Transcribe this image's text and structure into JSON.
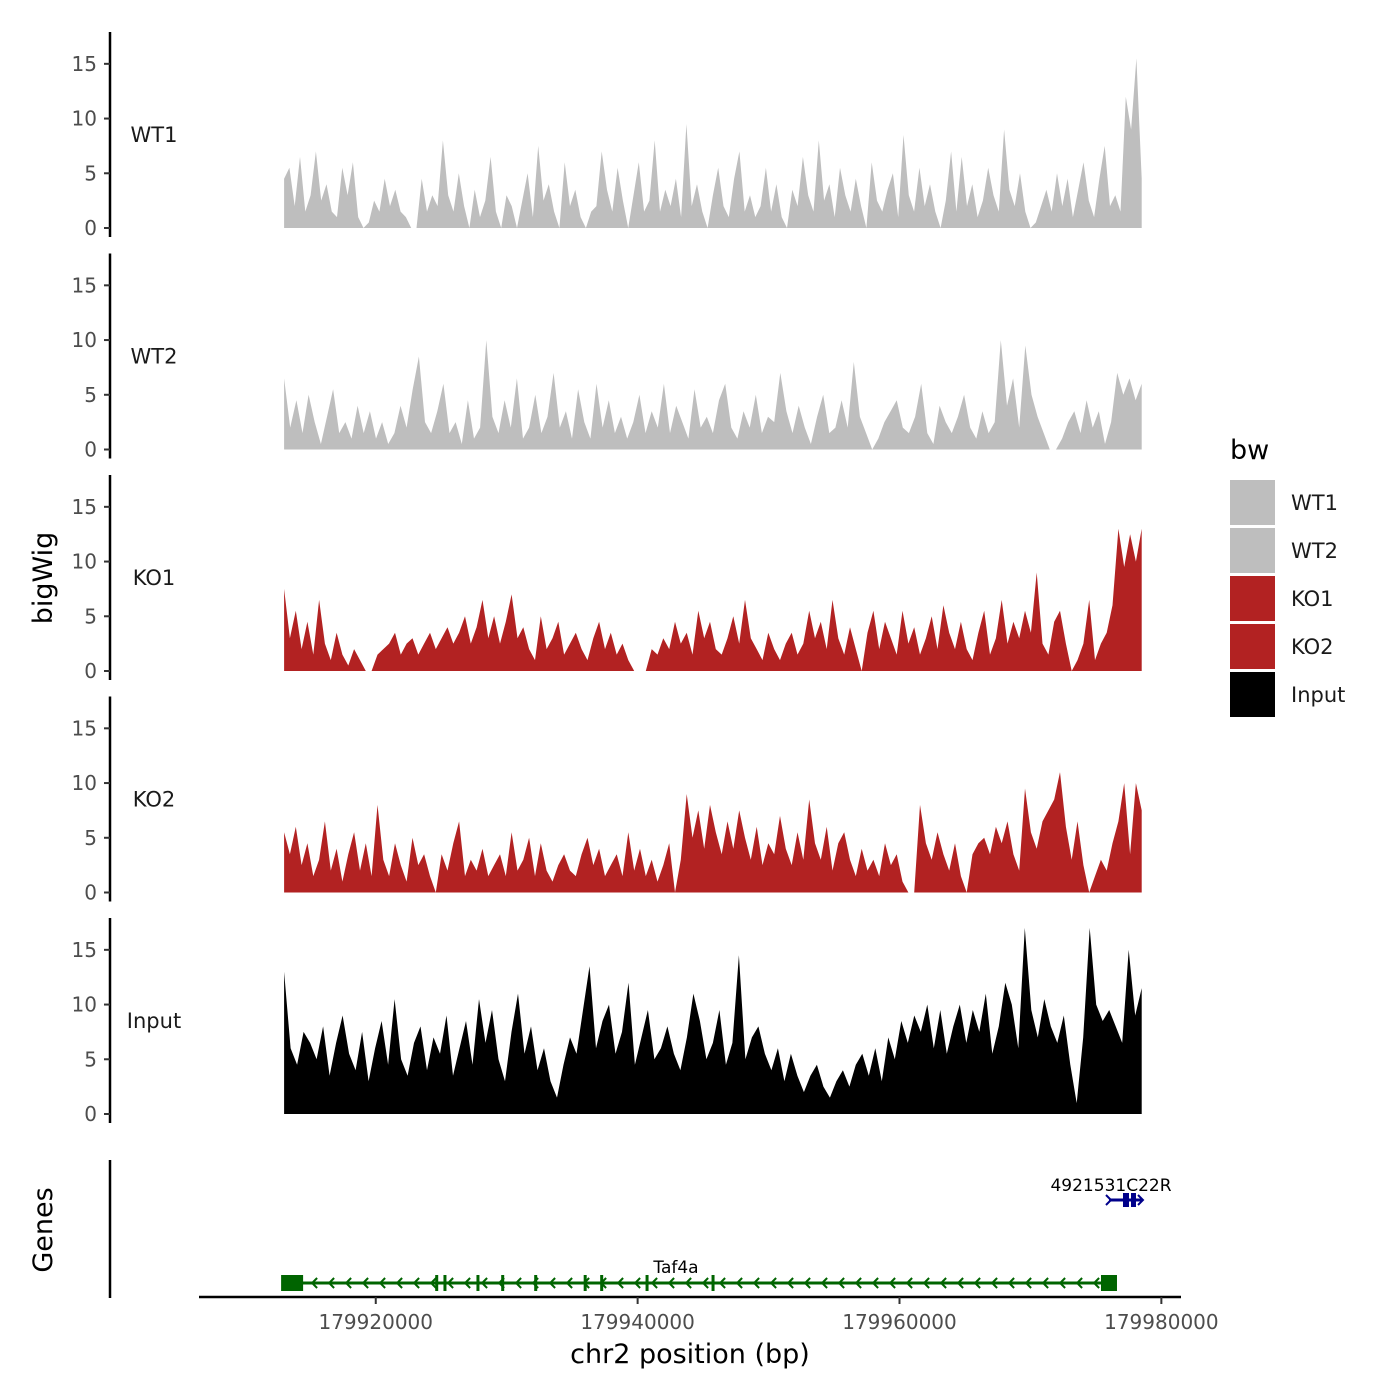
{
  "chart_data": {
    "type": "area",
    "ylabel": "bigWig",
    "xlabel": "chr2 position (bp)",
    "chromosome": "chr2",
    "x_range": [
      179913000,
      179978500
    ],
    "xlim": [
      179906500,
      179981500
    ],
    "x_ticks": [
      179920000,
      179940000,
      179960000,
      179980000
    ],
    "x_tick_labels": [
      "179920000",
      "179940000",
      "179960000",
      "179980000"
    ],
    "ylim": [
      0,
      18
    ],
    "y_ticks": [
      0,
      5,
      10,
      15
    ],
    "y_tick_labels": [
      "0",
      "5",
      "10",
      "15"
    ],
    "gene_track_label": "Genes",
    "legend": {
      "title": "bw",
      "position": "right",
      "entries": [
        {
          "label": "WT1",
          "color": "#bebebe"
        },
        {
          "label": "WT2",
          "color": "#bebebe"
        },
        {
          "label": "KO1",
          "color": "#b22222"
        },
        {
          "label": "KO2",
          "color": "#b22222"
        },
        {
          "label": "Input",
          "color": "#000000"
        }
      ]
    },
    "series": [
      {
        "name": "WT1",
        "color": "#bebebe",
        "values": [
          4.5,
          5.5,
          2.0,
          6.5,
          1.5,
          3.0,
          7.0,
          2.5,
          4.0,
          1.5,
          1.0,
          5.5,
          3.0,
          6.0,
          1.0,
          0,
          0.5,
          2.5,
          1.5,
          4.5,
          2.0,
          3.5,
          1.5,
          1.0,
          0,
          0,
          4.5,
          1.5,
          3.0,
          2.0,
          8.0,
          3.0,
          1.5,
          5.0,
          2.0,
          0,
          3.5,
          1.0,
          2.5,
          6.5,
          1.5,
          0,
          3.0,
          2.0,
          0,
          2.5,
          5.0,
          1.0,
          7.5,
          2.5,
          4.0,
          1.5,
          0,
          6.0,
          2.0,
          3.5,
          1.0,
          0,
          1.5,
          2.0,
          7.0,
          3.5,
          1.5,
          5.5,
          2.5,
          0,
          3.0,
          6.0,
          1.5,
          2.5,
          8.0,
          1.5,
          3.5,
          2.0,
          4.5,
          1.0,
          9.5,
          2.0,
          4.0,
          1.5,
          0,
          3.0,
          5.5,
          2.0,
          1.0,
          4.5,
          7.0,
          1.5,
          3.0,
          1.0,
          2.0,
          5.5,
          1.5,
          4.0,
          1.0,
          0,
          3.5,
          2.0,
          6.5,
          3.0,
          1.5,
          8.0,
          2.5,
          4.0,
          1.0,
          5.5,
          3.0,
          1.5,
          4.5,
          2.0,
          0,
          6.0,
          2.5,
          1.5,
          3.5,
          5.0,
          1.0,
          8.5,
          3.0,
          1.5,
          5.5,
          2.0,
          4.0,
          1.5,
          0,
          2.5,
          7.0,
          1.5,
          6.5,
          2.0,
          4.0,
          1.0,
          2.5,
          5.5,
          3.0,
          1.5,
          9.0,
          3.5,
          2.0,
          5.0,
          1.5,
          0,
          0.5,
          2.0,
          3.5,
          1.5,
          5.0,
          2.0,
          4.5,
          1.0,
          3.5,
          6.0,
          2.5,
          1.0,
          4.5,
          7.5,
          2.0,
          3.0,
          1.5,
          12.0,
          9.0,
          15.5,
          4.5
        ]
      },
      {
        "name": "WT2",
        "color": "#bebebe",
        "values": [
          6.5,
          2.0,
          4.5,
          1.5,
          5.0,
          2.5,
          0.5,
          3.0,
          5.5,
          1.5,
          2.5,
          1.0,
          4.0,
          1.5,
          3.5,
          1.0,
          2.5,
          0.5,
          1.5,
          4.0,
          2.0,
          5.5,
          8.5,
          2.5,
          1.5,
          3.5,
          6.0,
          1.5,
          2.5,
          0.5,
          4.5,
          1.0,
          2.0,
          10.0,
          3.0,
          1.5,
          4.5,
          2.0,
          6.5,
          1.0,
          2.0,
          5.0,
          1.5,
          3.0,
          7.0,
          2.0,
          3.5,
          1.0,
          5.5,
          2.5,
          1.0,
          6.0,
          2.0,
          4.5,
          1.5,
          3.0,
          1.0,
          2.5,
          5.0,
          1.5,
          3.5,
          2.0,
          6.0,
          1.5,
          4.0,
          2.5,
          1.0,
          5.5,
          2.0,
          3.0,
          1.5,
          4.5,
          6.0,
          2.0,
          1.0,
          3.5,
          2.0,
          5.0,
          1.5,
          3.0,
          2.5,
          7.0,
          3.5,
          1.5,
          4.0,
          2.0,
          0.5,
          3.0,
          5.0,
          1.5,
          2.0,
          4.5,
          2.0,
          8.0,
          3.0,
          1.5,
          0,
          1.0,
          2.5,
          3.5,
          4.5,
          2.0,
          1.5,
          3.0,
          6.0,
          1.5,
          0.5,
          4.0,
          2.5,
          1.5,
          3.0,
          5.0,
          2.0,
          1.0,
          3.5,
          1.5,
          2.5,
          10.0,
          4.0,
          6.5,
          2.0,
          9.5,
          5.0,
          3.0,
          1.5,
          0,
          0,
          1.0,
          2.5,
          3.5,
          1.5,
          4.5,
          2.0,
          3.5,
          0.5,
          2.5,
          7.0,
          5.0,
          6.5,
          4.5,
          6.0
        ]
      },
      {
        "name": "KO1",
        "color": "#b22222",
        "values": [
          7.5,
          3.0,
          5.5,
          2.0,
          4.5,
          1.5,
          6.5,
          2.5,
          1.0,
          3.5,
          1.5,
          0.5,
          2.0,
          1.0,
          0,
          0,
          1.5,
          2.0,
          2.5,
          3.5,
          1.5,
          2.5,
          3.0,
          1.5,
          2.5,
          3.5,
          2.0,
          3.0,
          4.0,
          2.5,
          3.5,
          5.0,
          2.5,
          4.0,
          6.5,
          3.0,
          5.0,
          2.5,
          4.5,
          7.0,
          3.0,
          4.0,
          2.0,
          1.0,
          5.0,
          2.0,
          3.0,
          4.5,
          1.5,
          2.5,
          3.5,
          2.0,
          1.0,
          3.0,
          4.5,
          2.0,
          3.5,
          1.5,
          2.5,
          1.0,
          0,
          0,
          0,
          2.0,
          1.5,
          3.0,
          2.0,
          4.5,
          2.5,
          3.5,
          1.5,
          5.5,
          3.0,
          4.5,
          2.0,
          1.5,
          3.0,
          5.0,
          2.5,
          6.5,
          3.0,
          2.0,
          1.0,
          3.5,
          2.0,
          1.0,
          2.5,
          3.5,
          1.5,
          2.5,
          5.5,
          3.0,
          4.5,
          2.0,
          6.5,
          3.0,
          1.5,
          4.0,
          2.0,
          0,
          3.5,
          5.5,
          2.0,
          4.5,
          3.0,
          1.5,
          5.5,
          2.5,
          4.0,
          1.5,
          3.0,
          5.0,
          2.0,
          6.0,
          3.5,
          2.0,
          4.5,
          2.0,
          1.0,
          3.5,
          5.5,
          1.5,
          3.0,
          6.5,
          2.5,
          4.5,
          3.0,
          5.5,
          3.5,
          9.0,
          2.5,
          1.5,
          4.5,
          5.5,
          2.5,
          0,
          1.0,
          2.5,
          6.5,
          1.0,
          2.5,
          3.5,
          6.0,
          13.0,
          9.5,
          12.5,
          10.0,
          13.0
        ]
      },
      {
        "name": "KO2",
        "color": "#b22222",
        "values": [
          5.5,
          3.5,
          6.0,
          2.5,
          4.5,
          1.5,
          3.0,
          6.5,
          2.0,
          4.0,
          1.0,
          3.5,
          5.5,
          2.0,
          4.5,
          1.5,
          8.0,
          3.0,
          1.5,
          4.5,
          2.5,
          1.0,
          5.0,
          2.5,
          3.5,
          1.5,
          0,
          3.5,
          2.0,
          4.5,
          6.5,
          1.5,
          3.0,
          2.0,
          4.0,
          1.5,
          2.5,
          3.5,
          1.5,
          5.5,
          2.0,
          3.0,
          5.0,
          1.5,
          4.5,
          2.0,
          1.0,
          2.5,
          3.5,
          2.0,
          1.5,
          3.5,
          5.0,
          2.5,
          4.0,
          1.5,
          2.5,
          3.5,
          1.5,
          5.5,
          2.0,
          4.0,
          1.5,
          3.0,
          1.0,
          2.5,
          4.5,
          0,
          3.0,
          9.0,
          5.0,
          7.5,
          4.0,
          8.0,
          5.5,
          3.5,
          6.5,
          4.0,
          7.5,
          5.0,
          3.0,
          6.0,
          2.5,
          4.5,
          3.5,
          7.0,
          4.0,
          2.5,
          5.5,
          3.0,
          8.5,
          4.5,
          3.0,
          6.0,
          2.0,
          4.5,
          5.5,
          3.0,
          1.5,
          4.0,
          2.0,
          3.0,
          1.5,
          4.5,
          2.5,
          3.5,
          1.0,
          0,
          0,
          8.0,
          4.5,
          3.0,
          5.5,
          3.5,
          2.0,
          4.5,
          1.5,
          0,
          3.5,
          4.5,
          5.0,
          3.5,
          6.0,
          4.5,
          6.5,
          3.5,
          2.0,
          9.5,
          5.5,
          4.0,
          6.5,
          7.5,
          8.5,
          11.0,
          6.0,
          3.0,
          6.5,
          2.5,
          0,
          1.5,
          3.0,
          2.0,
          4.5,
          6.5,
          10.0,
          3.5,
          10.0,
          7.5
        ]
      },
      {
        "name": "Input",
        "color": "#000000",
        "values": [
          13.0,
          6.0,
          4.5,
          7.5,
          6.5,
          5.0,
          8.0,
          3.5,
          6.5,
          9.0,
          5.5,
          4.0,
          7.5,
          3.0,
          6.0,
          8.5,
          4.5,
          10.5,
          5.0,
          3.5,
          6.5,
          8.0,
          4.0,
          7.0,
          5.5,
          9.0,
          3.5,
          6.0,
          8.5,
          4.5,
          10.5,
          6.5,
          9.5,
          5.0,
          3.0,
          7.5,
          11.0,
          5.5,
          8.0,
          4.0,
          6.0,
          3.0,
          1.5,
          4.5,
          7.0,
          5.5,
          9.5,
          13.5,
          6.0,
          8.5,
          10.0,
          5.5,
          7.5,
          12.0,
          4.5,
          7.0,
          9.5,
          5.0,
          6.0,
          8.0,
          5.5,
          4.0,
          7.0,
          11.0,
          8.5,
          5.0,
          6.5,
          9.5,
          4.5,
          6.5,
          14.5,
          5.0,
          7.0,
          8.0,
          5.5,
          4.0,
          6.0,
          3.0,
          5.5,
          3.5,
          2.0,
          3.5,
          4.5,
          2.5,
          1.5,
          3.0,
          4.0,
          2.5,
          4.5,
          5.5,
          3.5,
          6.0,
          3.0,
          7.0,
          5.0,
          8.5,
          6.5,
          9.0,
          7.5,
          10.0,
          6.0,
          9.5,
          5.5,
          8.0,
          10.0,
          6.5,
          9.5,
          7.5,
          11.0,
          5.5,
          8.0,
          12.0,
          10.0,
          6.0,
          17.0,
          9.5,
          7.0,
          10.5,
          8.0,
          6.5,
          9.0,
          4.5,
          1.0,
          7.0,
          17.0,
          10.0,
          8.5,
          9.5,
          8.0,
          6.5,
          15.0,
          9.0,
          11.5
        ]
      }
    ],
    "genes": [
      {
        "name": "Taf4a",
        "strand": "-",
        "color": "#006400",
        "start": 179913000,
        "end": 179976000
      },
      {
        "name": "4921531C22R",
        "strand": "+",
        "color": "#00008b",
        "start": 179976000,
        "end": 179978500
      }
    ]
  }
}
